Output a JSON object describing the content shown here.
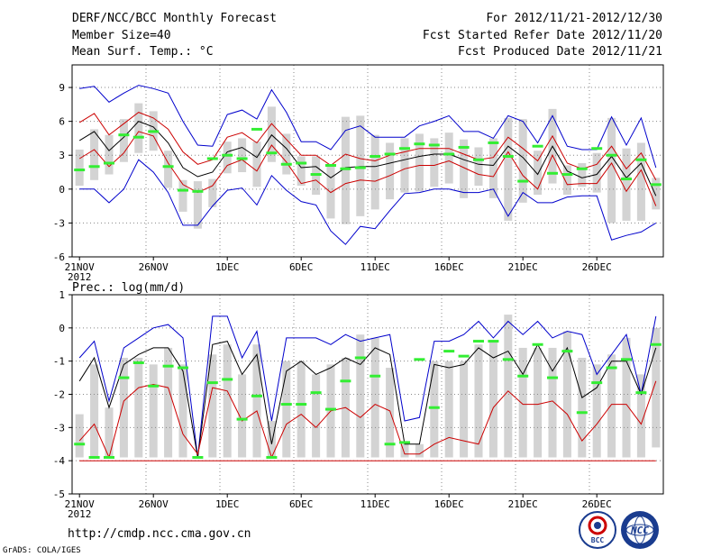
{
  "header": {
    "title": "DERF/NCC/BCC Monthly Forecast",
    "member_size": "Member Size=40",
    "variable": "Mean Surf. Temp.: °C",
    "fcst_period": "For 2012/11/21-2012/12/30",
    "fcst_started": "Fcst Started Refer Date 2012/11/20",
    "fcst_produced": "Fcst Produced Date 2012/11/21"
  },
  "footer": {
    "url": "http://cmdp.ncc.cma.gov.cn",
    "grads": "GrADS: COLA/IGES",
    "logo_bcc": "BCC",
    "logo_ncc": "NCC"
  },
  "colors": {
    "ensemble_bar": "#d3d3d3",
    "mean": "#000000",
    "spread_inner": "#cc0000",
    "spread_outer": "#0000cc",
    "observed": "#33ee33",
    "grid": "#888888"
  },
  "chart_data": [
    {
      "type": "line",
      "title": "Mean Surf. Temp.: °C",
      "ylim": [
        -6,
        11
      ],
      "yticks": [
        -6,
        -3,
        0,
        3,
        6,
        9
      ],
      "x_tick_labels": [
        "21NOV",
        "26NOV",
        "1DEC",
        "6DEC",
        "11DEC",
        "16DEC",
        "21DEC",
        "26DEC"
      ],
      "x_tick_days": [
        0,
        5,
        10,
        15,
        20,
        25,
        30,
        35
      ],
      "year_label": "2012",
      "days": 40,
      "series": [
        {
          "name": "max",
          "color": "#0000cc",
          "values": [
            8.9,
            9.1,
            7.7,
            8.5,
            9.2,
            8.9,
            8.5,
            6.0,
            3.9,
            3.8,
            6.6,
            7.0,
            6.2,
            8.8,
            6.8,
            4.2,
            4.2,
            3.5,
            5.2,
            5.6,
            4.6,
            4.6,
            4.6,
            5.6,
            6.0,
            6.5,
            5.1,
            5.1,
            4.5,
            6.5,
            6.0,
            4.1,
            6.5,
            3.8,
            3.5,
            3.5,
            6.4,
            3.9,
            6.3,
            1.9
          ]
        },
        {
          "name": "upper",
          "color": "#cc0000",
          "values": [
            5.9,
            6.7,
            4.8,
            5.8,
            6.8,
            6.3,
            5.3,
            3.3,
            2.2,
            2.6,
            4.6,
            5.0,
            4.1,
            5.8,
            4.4,
            3.0,
            3.0,
            2.1,
            3.1,
            2.7,
            2.5,
            3.0,
            3.3,
            3.6,
            3.6,
            3.6,
            3.1,
            2.6,
            2.8,
            4.6,
            3.6,
            2.5,
            4.7,
            2.3,
            1.8,
            2.2,
            3.8,
            1.8,
            3.2,
            0.8
          ]
        },
        {
          "name": "mean",
          "color": "#000000",
          "values": [
            4.3,
            5.1,
            3.4,
            4.6,
            6.0,
            5.5,
            4.1,
            1.9,
            1.1,
            1.5,
            3.3,
            3.7,
            2.8,
            4.8,
            3.6,
            1.9,
            2.0,
            1.0,
            1.9,
            2.0,
            2.0,
            2.3,
            2.6,
            2.9,
            3.1,
            3.1,
            2.6,
            2.2,
            2.1,
            3.8,
            2.8,
            1.3,
            3.8,
            1.6,
            1.0,
            1.3,
            2.9,
            1.0,
            2.3,
            -0.6
          ]
        },
        {
          "name": "lower",
          "color": "#cc0000",
          "values": [
            2.7,
            3.5,
            2.0,
            3.2,
            5.1,
            4.7,
            2.3,
            0.4,
            -0.3,
            0.3,
            2.1,
            2.6,
            1.6,
            3.9,
            2.4,
            0.5,
            0.8,
            -0.3,
            0.5,
            0.8,
            0.7,
            1.2,
            1.8,
            2.1,
            2.1,
            2.5,
            1.9,
            1.3,
            1.1,
            3.3,
            1.2,
            0.0,
            3.0,
            0.4,
            0.5,
            0.5,
            2.3,
            -0.2,
            1.7,
            -1.5
          ]
        },
        {
          "name": "min",
          "color": "#0000cc",
          "values": [
            0.0,
            0.0,
            -1.2,
            0.0,
            2.6,
            1.5,
            -0.3,
            -3.2,
            -3.2,
            -1.5,
            -0.1,
            0.1,
            -1.4,
            1.2,
            -0.1,
            -1.1,
            -1.4,
            -3.7,
            -4.9,
            -3.3,
            -3.5,
            -1.9,
            -0.4,
            -0.3,
            0.0,
            0.0,
            -0.3,
            -0.3,
            0.0,
            -2.4,
            -0.3,
            -1.2,
            -1.2,
            -0.7,
            -0.6,
            -0.6,
            -4.5,
            -4.1,
            -3.8,
            -3.0
          ]
        }
      ],
      "bars": {
        "name": "ensemble range",
        "low": [
          0.3,
          0.8,
          1.3,
          2.4,
          3.2,
          3.4,
          0.1,
          -2.0,
          -3.5,
          -1.6,
          1.4,
          1.5,
          0.2,
          2.4,
          1.3,
          0.3,
          -0.5,
          -2.6,
          -3.1,
          -2.4,
          -1.8,
          -0.9,
          -0.3,
          -0.2,
          0.2,
          0.5,
          -0.8,
          0.3,
          -0.8,
          -2.8,
          -1.2,
          -0.5,
          0.5,
          -0.5,
          0.2,
          -0.3,
          -3.0,
          -2.8,
          -2.8,
          -1.8
        ],
        "high": [
          3.5,
          5.3,
          4.8,
          6.2,
          7.6,
          6.9,
          3.4,
          0.8,
          0.7,
          0.9,
          4.2,
          4.5,
          4.2,
          7.3,
          4.9,
          2.9,
          2.9,
          2.1,
          6.4,
          6.5,
          4.8,
          4.1,
          4.5,
          4.9,
          4.5,
          5.0,
          4.4,
          3.7,
          4.5,
          6.3,
          6.2,
          3.4,
          7.1,
          2.1,
          2.3,
          3.2,
          6.3,
          3.6,
          4.1,
          1.0
        ]
      },
      "observed": [
        1.7,
        2.0,
        2.3,
        4.8,
        4.6,
        5.1,
        2.0,
        -0.1,
        -0.2,
        2.7,
        3.0,
        2.7,
        5.3,
        3.2,
        2.2,
        2.3,
        1.3,
        2.1,
        1.8,
        1.9,
        2.9,
        3.1,
        3.6,
        4.0,
        3.9,
        3.1,
        3.7,
        2.6,
        4.1,
        2.9,
        0.7,
        3.8,
        1.4,
        1.3,
        1.8,
        3.6,
        3.0,
        0.9,
        2.6,
        0.4
      ]
    },
    {
      "type": "line",
      "title": "Prec.: log(mm/d)",
      "ylim": [
        -5,
        1
      ],
      "yticks": [
        -5,
        -4,
        -3,
        -2,
        -1,
        0,
        1
      ],
      "x_tick_labels": [
        "21NOV",
        "26NOV",
        "1DEC",
        "6DEC",
        "11DEC",
        "16DEC",
        "21DEC",
        "26DEC"
      ],
      "x_tick_days": [
        0,
        5,
        10,
        15,
        20,
        25,
        30,
        35
      ],
      "year_label": "2012",
      "days": 40,
      "series": [
        {
          "name": "upper",
          "color": "#0000cc",
          "values": [
            -0.9,
            -0.4,
            -2.2,
            -0.6,
            -0.3,
            0.0,
            0.1,
            -0.3,
            -3.9,
            0.35,
            0.35,
            -0.9,
            -0.1,
            -2.8,
            -0.3,
            -0.3,
            -0.3,
            -0.5,
            -0.2,
            -0.4,
            -0.3,
            -0.2,
            -2.8,
            -2.7,
            -0.4,
            -0.4,
            -0.2,
            0.2,
            -0.3,
            0.2,
            -0.2,
            0.2,
            -0.3,
            -0.1,
            -0.2,
            -1.4,
            -0.8,
            -0.2,
            -2.0,
            0.35
          ]
        },
        {
          "name": "mean",
          "color": "#000000",
          "values": [
            -1.6,
            -0.9,
            -2.4,
            -1.1,
            -0.8,
            -0.6,
            -0.6,
            -1.3,
            -3.9,
            -0.5,
            -0.4,
            -1.4,
            -0.8,
            -3.5,
            -1.3,
            -1.0,
            -1.4,
            -1.2,
            -0.9,
            -1.1,
            -0.6,
            -0.8,
            -3.5,
            -3.5,
            -1.1,
            -1.2,
            -1.1,
            -0.6,
            -0.9,
            -0.7,
            -1.4,
            -0.5,
            -1.3,
            -0.6,
            -2.1,
            -1.8,
            -1.0,
            -1.0,
            -2.0,
            -0.6
          ]
        },
        {
          "name": "lower",
          "color": "#cc0000",
          "values": [
            -3.4,
            -2.9,
            -3.9,
            -2.2,
            -1.8,
            -1.7,
            -1.8,
            -3.2,
            -3.8,
            -1.8,
            -1.9,
            -2.8,
            -2.5,
            -3.9,
            -2.9,
            -2.6,
            -3.0,
            -2.5,
            -2.4,
            -2.7,
            -2.3,
            -2.5,
            -3.8,
            -3.8,
            -3.5,
            -3.3,
            -3.4,
            -3.5,
            -2.4,
            -1.9,
            -2.3,
            -2.3,
            -2.2,
            -2.6,
            -3.4,
            -2.9,
            -2.3,
            -2.3,
            -2.9,
            -1.6
          ]
        },
        {
          "name": "floor",
          "color": "#cc0000",
          "values": [
            -4,
            -4,
            -4,
            -4,
            -4,
            -4,
            -4,
            -4,
            -4,
            -4,
            -4,
            -4,
            -4,
            -4,
            -4,
            -4,
            -4,
            -4,
            -4,
            -4,
            -4,
            -4,
            -4,
            -4,
            -4,
            -4,
            -4,
            -4,
            -4,
            -4,
            -4,
            -4,
            -4,
            -4,
            -4,
            -4,
            -4,
            -4,
            -4,
            -4
          ]
        }
      ],
      "bars": {
        "name": "ensemble range",
        "low": [
          -3.9,
          -3.9,
          -3.9,
          -3.9,
          -3.9,
          -3.9,
          -3.9,
          -3.9,
          -3.9,
          -3.9,
          -3.9,
          -3.9,
          -3.9,
          -3.9,
          -3.9,
          -3.9,
          -3.9,
          -3.9,
          -3.9,
          -3.9,
          -3.9,
          -3.9,
          -3.9,
          -3.9,
          -3.9,
          -3.9,
          -3.9,
          -3.9,
          -3.9,
          -3.9,
          -3.9,
          -3.9,
          -3.9,
          -3.9,
          -3.9,
          -3.9,
          -3.9,
          -3.9,
          -3.9,
          -3.6
        ],
        "high": [
          -2.6,
          -1.1,
          -2.4,
          -0.9,
          -0.9,
          -1.1,
          -0.6,
          -1.1,
          -3.9,
          -0.8,
          -0.5,
          -1.4,
          -0.5,
          -2.8,
          -1.0,
          -1.0,
          -1.4,
          -1.1,
          -0.9,
          -0.2,
          -0.3,
          -1.2,
          -3.5,
          -3.5,
          -1.0,
          -1.0,
          -1.0,
          -0.5,
          -0.4,
          0.4,
          -0.6,
          -0.6,
          -0.6,
          -0.1,
          -0.9,
          -1.1,
          -0.8,
          -0.3,
          -1.4,
          0.0
        ]
      },
      "observed": [
        -3.5,
        -3.9,
        -3.9,
        -1.5,
        -1.05,
        -1.75,
        -1.15,
        -1.2,
        -3.9,
        -1.65,
        -1.55,
        -2.75,
        -2.05,
        -3.9,
        -2.3,
        -2.3,
        -1.95,
        -2.45,
        -1.6,
        -0.9,
        -1.45,
        -3.5,
        -3.45,
        -0.95,
        -2.4,
        -0.7,
        -0.85,
        -0.4,
        -0.4,
        -0.95,
        -1.45,
        -0.5,
        -1.5,
        -0.7,
        -2.55,
        -1.65,
        -1.2,
        -0.95,
        -1.95,
        -0.5
      ]
    }
  ]
}
